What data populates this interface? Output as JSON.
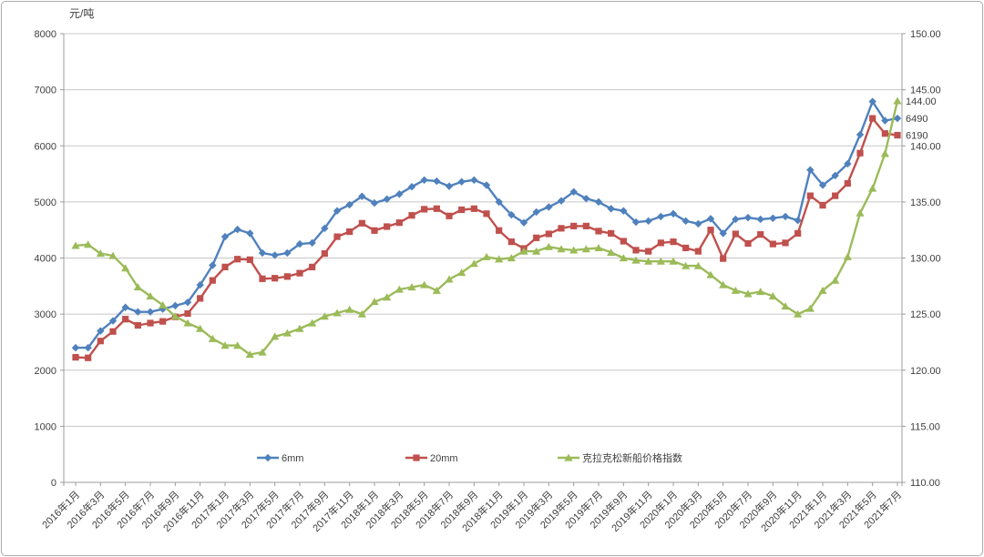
{
  "chart_data": {
    "type": "line",
    "unit_label": "元/吨",
    "x_tick_step": 2,
    "x": [
      "2016年1月",
      "2016年2月",
      "2016年3月",
      "2016年4月",
      "2016年5月",
      "2016年6月",
      "2016年7月",
      "2016年8月",
      "2016年9月",
      "2016年10月",
      "2016年11月",
      "2016年12月",
      "2017年1月",
      "2017年2月",
      "2017年3月",
      "2017年4月",
      "2017年5月",
      "2017年6月",
      "2017年7月",
      "2017年8月",
      "2017年9月",
      "2017年10月",
      "2017年11月",
      "2017年12月",
      "2018年1月",
      "2018年2月",
      "2018年3月",
      "2018年4月",
      "2018年5月",
      "2018年6月",
      "2018年7月",
      "2018年8月",
      "2018年9月",
      "2018年10月",
      "2018年11月",
      "2018年12月",
      "2019年1月",
      "2019年2月",
      "2019年3月",
      "2019年4月",
      "2019年5月",
      "2019年6月",
      "2019年7月",
      "2019年8月",
      "2019年9月",
      "2019年10月",
      "2019年11月",
      "2019年12月",
      "2020年1月",
      "2020年2月",
      "2020年3月",
      "2020年4月",
      "2020年5月",
      "2020年6月",
      "2020年7月",
      "2020年8月",
      "2020年9月",
      "2020年10月",
      "2020年11月",
      "2020年12月",
      "2021年1月",
      "2021年2月",
      "2021年3月",
      "2021年4月",
      "2021年5月",
      "2021年6月",
      "2021年7月"
    ],
    "left_axis": {
      "min": 0,
      "max": 8000,
      "step": 1000,
      "decimals": 0
    },
    "right_axis": {
      "min": 110,
      "max": 150,
      "step": 5,
      "decimals": 2
    },
    "series": [
      {
        "name": "6mm",
        "axis": "left",
        "color": "#4F81BD",
        "marker": "diamond",
        "values": [
          2400,
          2400,
          2700,
          2880,
          3120,
          3040,
          3040,
          3090,
          3150,
          3210,
          3520,
          3870,
          4380,
          4510,
          4440,
          4090,
          4050,
          4090,
          4250,
          4270,
          4530,
          4840,
          4950,
          5100,
          4980,
          5050,
          5140,
          5270,
          5390,
          5370,
          5280,
          5360,
          5390,
          5300,
          5000,
          4770,
          4630,
          4820,
          4910,
          5020,
          5180,
          5060,
          5000,
          4880,
          4840,
          4640,
          4660,
          4740,
          4790,
          4660,
          4610,
          4700,
          4440,
          4690,
          4720,
          4690,
          4710,
          4740,
          4670,
          5570,
          5300,
          5470,
          5680,
          6200,
          6790,
          6450,
          6490
        ]
      },
      {
        "name": "20mm",
        "axis": "left",
        "color": "#C0504D",
        "marker": "square",
        "values": [
          2230,
          2220,
          2520,
          2690,
          2910,
          2800,
          2840,
          2870,
          2950,
          3010,
          3280,
          3600,
          3840,
          3980,
          3970,
          3630,
          3640,
          3670,
          3730,
          3840,
          4080,
          4380,
          4470,
          4620,
          4490,
          4560,
          4630,
          4760,
          4870,
          4880,
          4750,
          4860,
          4880,
          4790,
          4490,
          4290,
          4170,
          4360,
          4430,
          4530,
          4570,
          4570,
          4480,
          4440,
          4300,
          4140,
          4120,
          4270,
          4290,
          4180,
          4120,
          4500,
          3990,
          4430,
          4260,
          4420,
          4250,
          4270,
          4440,
          5110,
          4940,
          5110,
          5330,
          5870,
          6490,
          6220,
          6190
        ]
      },
      {
        "name": "克拉克松新船价格指数",
        "axis": "right",
        "color": "#9BBB59",
        "marker": "triangle",
        "values": [
          131.1,
          131.2,
          130.4,
          130.2,
          129.1,
          127.4,
          126.6,
          125.8,
          124.8,
          124.2,
          123.7,
          122.8,
          122.2,
          122.2,
          121.4,
          121.6,
          123.0,
          123.3,
          123.7,
          124.2,
          124.8,
          125.1,
          125.4,
          125.0,
          126.1,
          126.5,
          127.2,
          127.4,
          127.6,
          127.1,
          128.1,
          128.7,
          129.5,
          130.1,
          129.9,
          130.0,
          130.6,
          130.6,
          131.0,
          130.8,
          130.7,
          130.8,
          130.9,
          130.5,
          130.0,
          129.8,
          129.7,
          129.7,
          129.7,
          129.3,
          129.3,
          128.5,
          127.6,
          127.1,
          126.8,
          127.0,
          126.6,
          125.7,
          125.0,
          125.5,
          127.1,
          128.0,
          130.1,
          134.0,
          136.2,
          139.3,
          144.0
        ]
      }
    ],
    "end_labels": [
      {
        "text": "144.00",
        "series": "克拉克松新船价格指数"
      },
      {
        "text": "6490",
        "series": "6mm"
      },
      {
        "text": "6190",
        "series": "20mm"
      }
    ],
    "legend": {
      "items": [
        "6mm",
        "20mm",
        "克拉克松新船价格指数"
      ]
    }
  }
}
